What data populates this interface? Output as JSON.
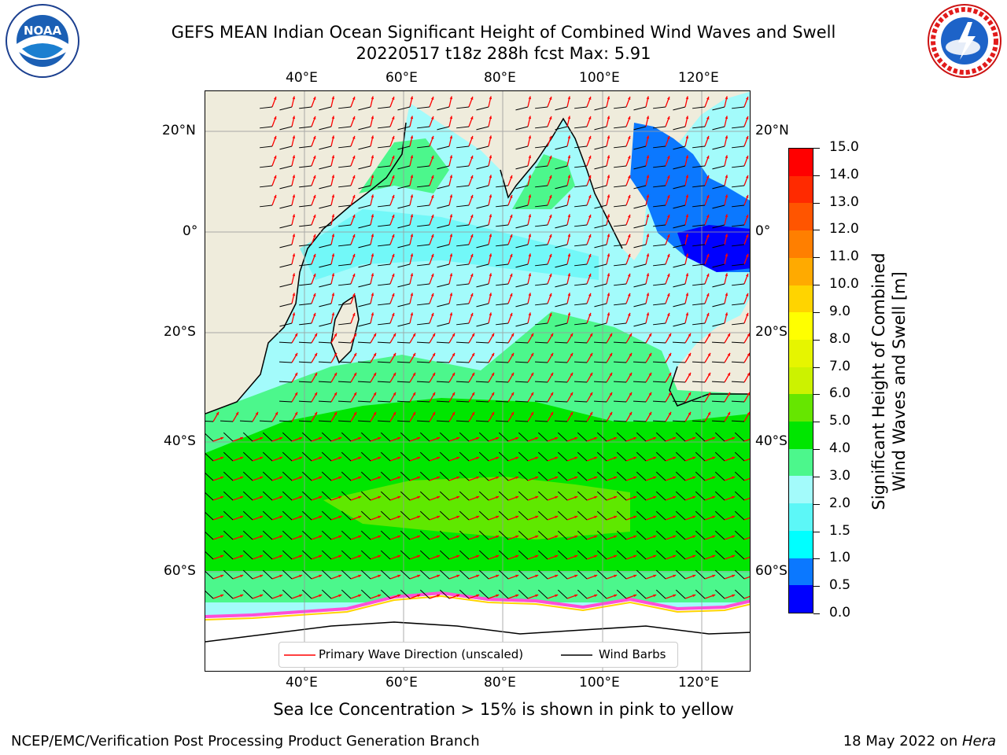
{
  "header": {
    "title_line1": "GEFS MEAN Indian Ocean Significant Height of Combined Wind Waves and Swell",
    "title_line2": "20220517 t18z 288h fcst   Max: 5.91"
  },
  "logos": {
    "left": {
      "name": "noaa-logo",
      "text": "NOAA",
      "ring_text": "NATIONAL OCEANIC AND ATMOSPHERIC ADMINISTRATION · U.S. DEPARTMENT OF COMMERCE"
    },
    "right": {
      "name": "nws-logo",
      "ring_text": "NATIONAL WEATHER SERVICE"
    }
  },
  "map": {
    "lon_ticks_top": [
      "40°E",
      "60°E",
      "80°E",
      "100°E",
      "120°E"
    ],
    "lon_ticks_bottom": [
      "40°E",
      "60°E",
      "80°E",
      "100°E",
      "120°E"
    ],
    "lat_ticks_left": [
      "20°N",
      "0°",
      "20°S",
      "40°S",
      "60°S"
    ],
    "lat_ticks_right": [
      "20°N",
      "0°",
      "20°S",
      "40°S",
      "60°S"
    ],
    "colors": {
      "land": "#efecdc",
      "ocean_light": "#a3fbfb",
      "ocean_cyan": "#5cf7f7",
      "ocean_green_light": "#4cf78c",
      "ocean_green": "#00e600",
      "ocean_green_bright": "#5fe800",
      "blue": "#0b78ff",
      "arrow": "#ff0000",
      "barb": "#000000"
    },
    "legend": {
      "primary_wave": "Primary Wave Direction (unscaled)",
      "wind_barbs": "Wind Barbs"
    }
  },
  "colorbar": {
    "title_line1": "Significant Height of Combined",
    "title_line2": "Wind Waves and Swell [m]",
    "levels": [
      "15.0",
      "14.0",
      "13.0",
      "12.0",
      "11.0",
      "10.0",
      "9.0",
      "8.0",
      "7.0",
      "6.0",
      "5.0",
      "4.0",
      "3.0",
      "2.0",
      "1.5",
      "1.0",
      "0.5",
      "0.0"
    ],
    "colors_top_to_bottom": [
      "#ff0000",
      "#ff2a00",
      "#ff5500",
      "#ff7f00",
      "#ffaa00",
      "#ffd400",
      "#ffff00",
      "#e6f500",
      "#ccf200",
      "#66e600",
      "#00e600",
      "#4cf78c",
      "#a3fbfb",
      "#5cf7f7",
      "#00ffff",
      "#0b78ff",
      "#0000ff"
    ]
  },
  "footer": {
    "sea_ice_note": "Sea Ice Concentration > 15% is shown in pink to yellow",
    "left": "NCEP/EMC/Verification Post Processing Product Generation Branch",
    "right_prefix": "18 May 2022 on ",
    "right_host": "Hera"
  }
}
